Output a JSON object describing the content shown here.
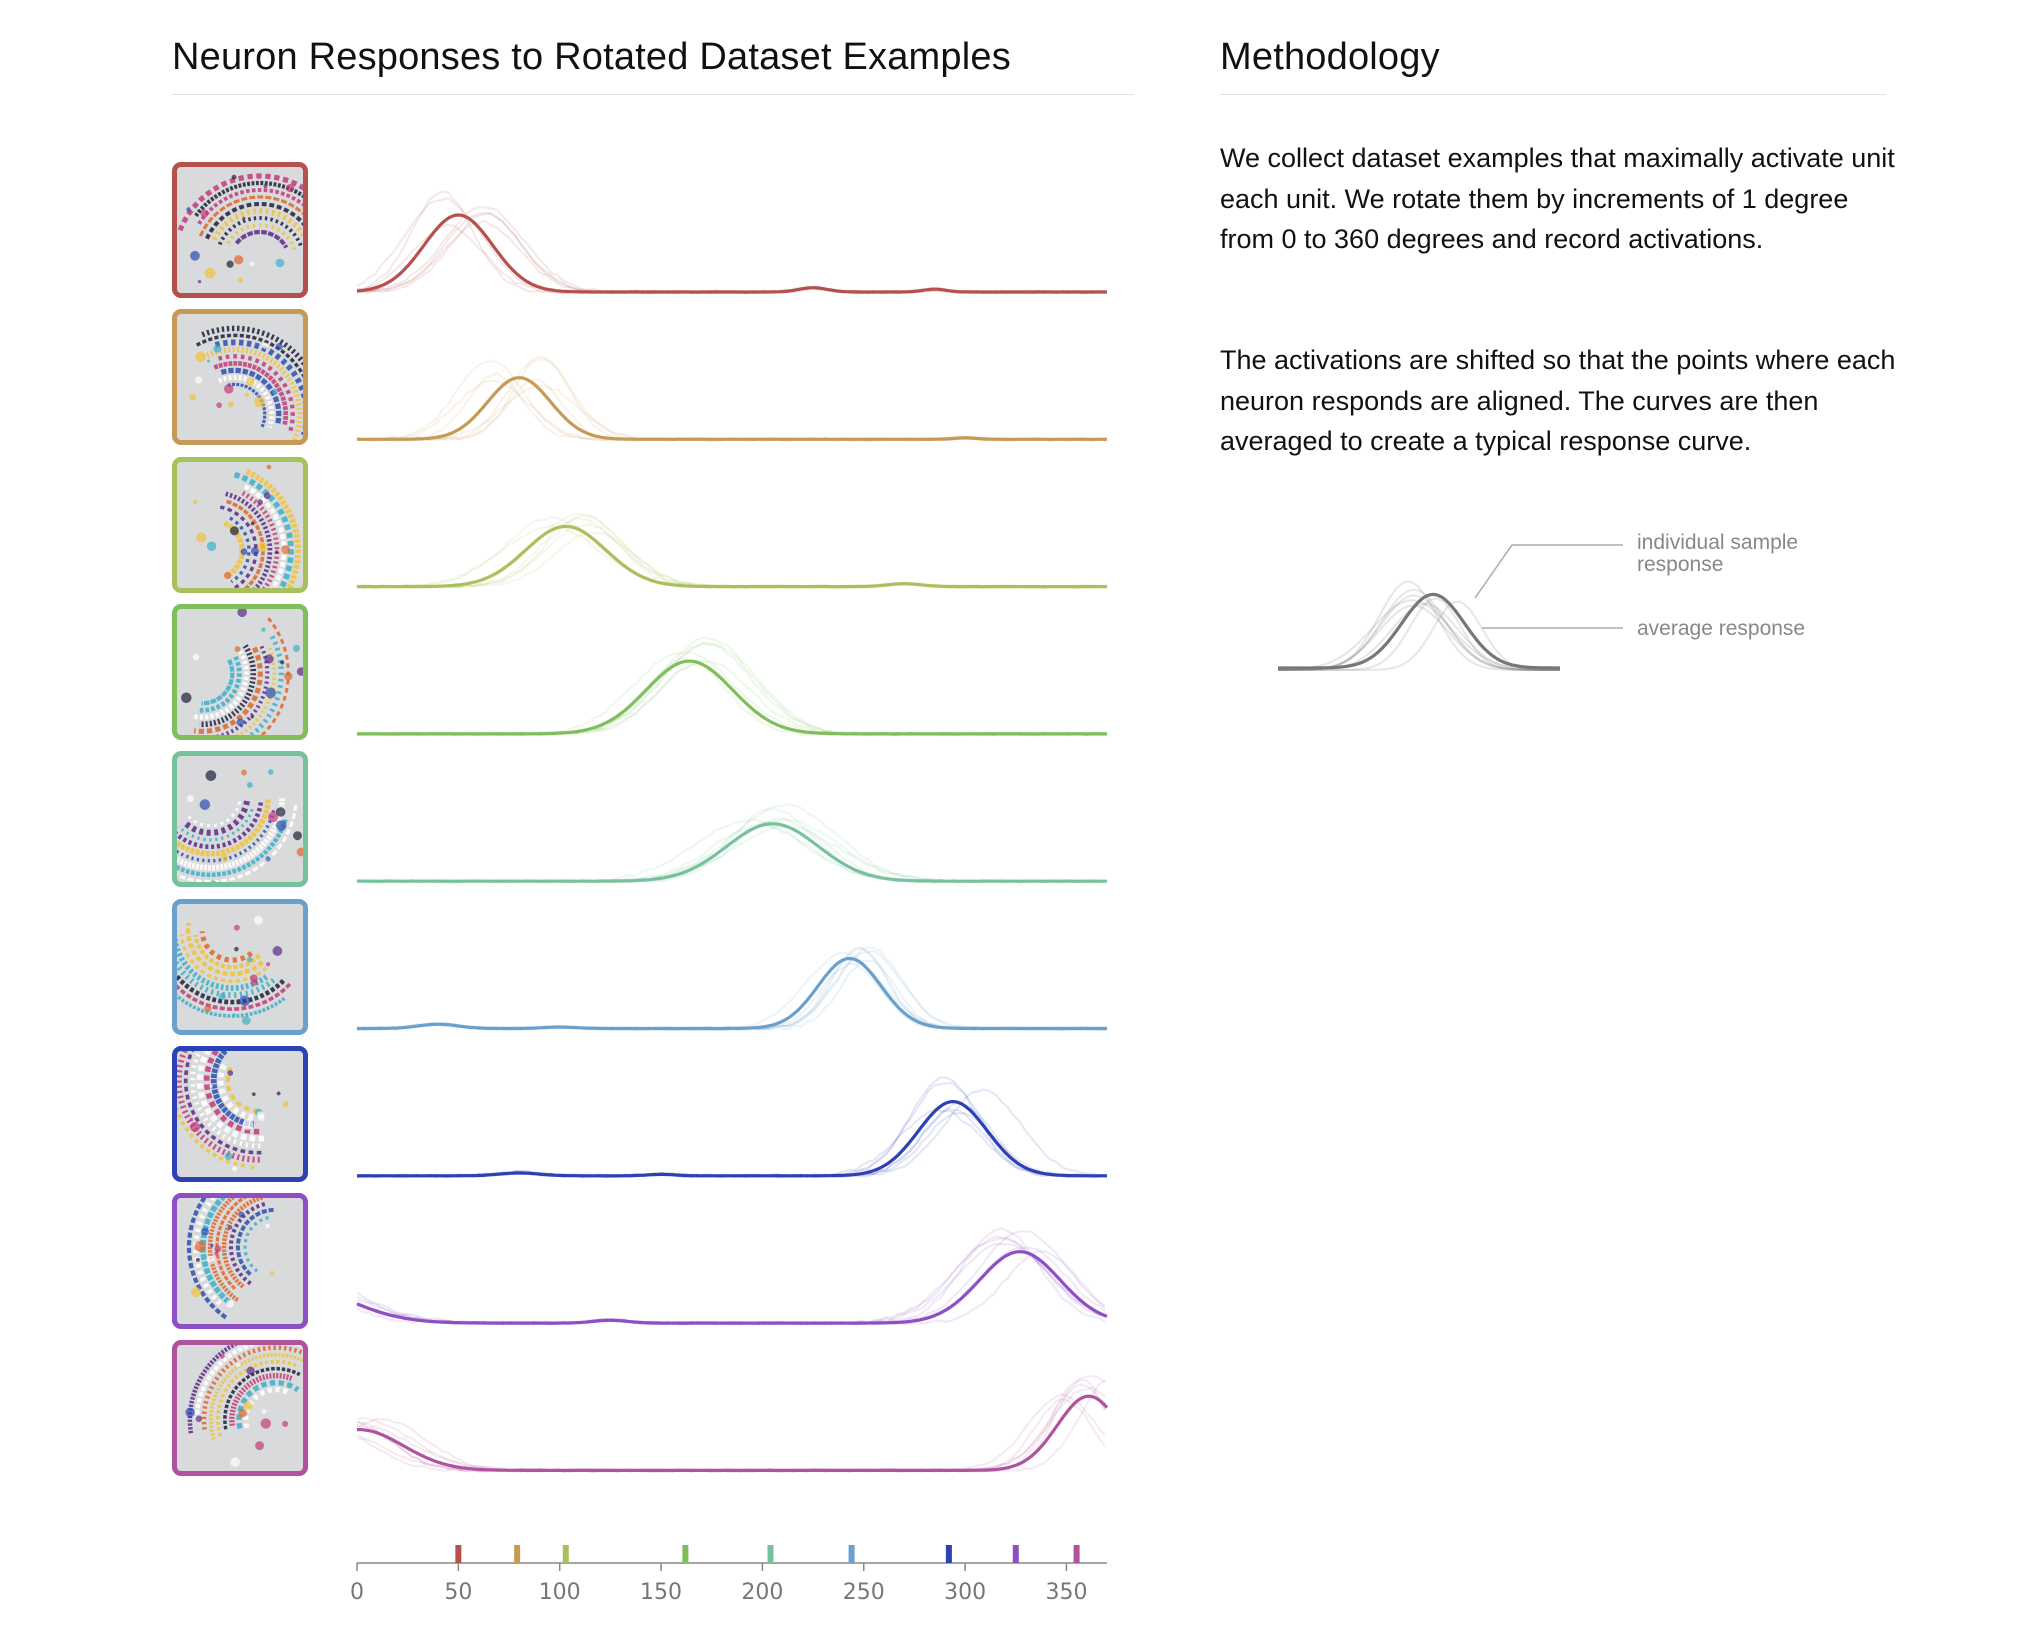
{
  "left_section": {
    "title": "Neuron Responses to Rotated Dataset Examples"
  },
  "right_section": {
    "title": "Methodology",
    "paragraphs": [
      "We collect dataset examples that maximally activate unit each unit. We rotate them by increments of 1 degree from 0 to 360 degrees and record activations.",
      "The activations are shifted so that the points where each neuron responds are aligned. The curves are then averaged to create a typical response curve."
    ]
  },
  "legend_diagram": {
    "label_individual": "individual sample response",
    "label_individual_lines": [
      "individual sample",
      "response"
    ],
    "label_average": "average response",
    "color": "#777777"
  },
  "chart_data": {
    "type": "line",
    "title": "",
    "xlabel": "",
    "ylabel": "",
    "xlim": [
      0,
      370
    ],
    "x_ticks": [
      0,
      50,
      100,
      150,
      200,
      250,
      300,
      350
    ],
    "grid": false,
    "series": [
      {
        "color": "#b5514d",
        "peak": 50,
        "width": 24,
        "height": 0.55,
        "bumps": [
          [
            225,
            10,
            0.03
          ],
          [
            285,
            8,
            0.02
          ]
        ],
        "wrap": false
      },
      {
        "color": "#c69a55",
        "peak": 80,
        "width": 22,
        "height": 0.44,
        "bumps": [
          [
            300,
            8,
            0.01
          ]
        ],
        "wrap": false
      },
      {
        "color": "#a9c15d",
        "peak": 103,
        "width": 28,
        "height": 0.43,
        "bumps": [
          [
            270,
            12,
            0.02
          ]
        ],
        "wrap": false
      },
      {
        "color": "#7fbf5b",
        "peak": 164,
        "width": 30,
        "height": 0.52,
        "bumps": [],
        "wrap": false
      },
      {
        "color": "#77c29c",
        "peak": 205,
        "width": 32,
        "height": 0.41,
        "bumps": [],
        "wrap": false
      },
      {
        "color": "#6aa0cc",
        "peak": 243,
        "width": 22,
        "height": 0.5,
        "bumps": [
          [
            40,
            14,
            0.03
          ],
          [
            100,
            12,
            0.01
          ]
        ],
        "wrap": false
      },
      {
        "color": "#2c41b4",
        "peak": 294,
        "width": 24,
        "height": 0.53,
        "bumps": [
          [
            80,
            14,
            0.02
          ],
          [
            150,
            10,
            0.01
          ]
        ],
        "wrap": false
      },
      {
        "color": "#8e4fc4",
        "peak": 327,
        "width": 28,
        "height": 0.51,
        "bumps": [
          [
            125,
            12,
            0.02
          ]
        ],
        "wrap": true
      },
      {
        "color": "#b0539e",
        "peak": 361,
        "width": 22,
        "height": 0.53,
        "bumps": [],
        "wrap": true
      }
    ],
    "tick_marks": [
      {
        "x": 50,
        "color": "#b5514d"
      },
      {
        "x": 79,
        "color": "#c69a55"
      },
      {
        "x": 103,
        "color": "#a9c15d"
      },
      {
        "x": 162,
        "color": "#7fbf5b"
      },
      {
        "x": 204,
        "color": "#77c29c"
      },
      {
        "x": 244,
        "color": "#6aa0cc"
      },
      {
        "x": 292,
        "color": "#2c41b4"
      },
      {
        "x": 325,
        "color": "#8e4fc4"
      },
      {
        "x": 355,
        "color": "#b0539e"
      }
    ]
  }
}
